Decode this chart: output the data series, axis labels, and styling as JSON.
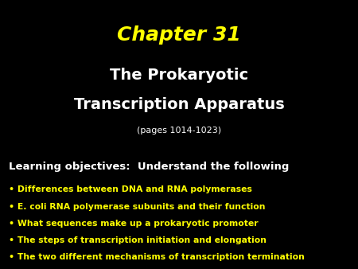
{
  "background_color": "#000000",
  "chapter_title": "Chapter 31",
  "chapter_color": "#ffff00",
  "chapter_fontsize": 18,
  "chapter_style": "italic",
  "chapter_weight": "bold",
  "subtitle_line1": "The Prokaryotic",
  "subtitle_line2": "Transcription Apparatus",
  "subtitle_color": "#ffffff",
  "subtitle_fontsize": 14,
  "subtitle_weight": "bold",
  "pages_text": "(pages 1014-1023)",
  "pages_color": "#ffffff",
  "pages_fontsize": 8,
  "learning_header": "Learning objectives:  Understand the following",
  "learning_header_color": "#ffffff",
  "learning_header_fontsize": 9.5,
  "learning_header_weight": "bold",
  "bullet_color": "#ffff00",
  "bullet_fontsize": 7.8,
  "bullet_weight": "bold",
  "bullets": [
    "Differences between DNA and RNA polymerases",
    "E. coli RNA polymerase subunits and their function",
    "What sequences make up a prokaryotic promoter",
    "The steps of transcription initiation and elongation",
    "The two different mechanisms of transcription termination"
  ]
}
